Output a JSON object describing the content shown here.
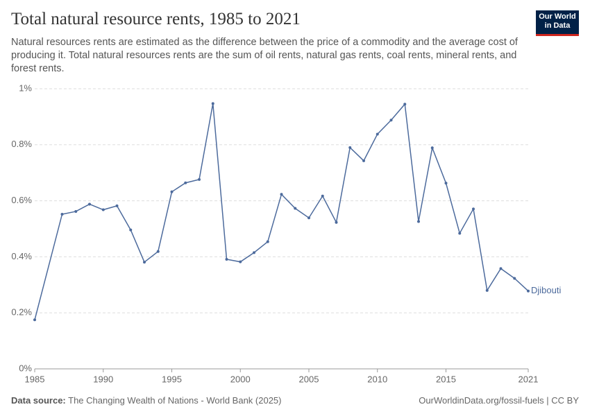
{
  "chart_data": {
    "type": "line",
    "title": "Total natural resource rents, 1985 to 2021",
    "subtitle": "Natural resources rents are estimated as the difference between the price of a commodity and the average cost of producing it. Total natural resources rents are the sum of oil rents, natural gas rents, coal rents, mineral rents, and forest rents.",
    "logo": "Our World in Data",
    "source_label": "Data source:",
    "source": "The Changing Wealth of Nations - World Bank (2025)",
    "credit": "OurWorldinData.org/fossil-fuels | CC BY",
    "x": [
      1985,
      1987,
      1988,
      1989,
      1990,
      1991,
      1992,
      1993,
      1994,
      1995,
      1996,
      1997,
      1998,
      1999,
      2000,
      2001,
      2002,
      2003,
      2004,
      2005,
      2006,
      2007,
      2008,
      2009,
      2010,
      2011,
      2012,
      2013,
      2014,
      2015,
      2016,
      2017,
      2018,
      2019,
      2020,
      2021
    ],
    "series": [
      {
        "name": "Djibouti",
        "color": "#4c6a9c",
        "values": [
          0.175,
          0.552,
          0.562,
          0.588,
          0.568,
          0.582,
          0.496,
          0.381,
          0.419,
          0.632,
          0.664,
          0.676,
          0.947,
          0.391,
          0.382,
          0.415,
          0.454,
          0.623,
          0.573,
          0.539,
          0.617,
          0.523,
          0.79,
          0.743,
          0.838,
          0.888,
          0.945,
          0.526,
          0.789,
          0.663,
          0.484,
          0.571,
          0.28,
          0.358,
          0.323,
          0.278
        ]
      }
    ],
    "xlim": [
      1985,
      2021
    ],
    "xticks": [
      1985,
      1990,
      1995,
      2000,
      2005,
      2010,
      2015,
      2021
    ],
    "ylim": [
      0,
      1
    ],
    "yticks": [
      {
        "value": 0,
        "label": "0%"
      },
      {
        "value": 0.2,
        "label": "0.2%"
      },
      {
        "value": 0.4,
        "label": "0.4%"
      },
      {
        "value": 0.6,
        "label": "0.6%"
      },
      {
        "value": 0.8,
        "label": "0.8%"
      },
      {
        "value": 1,
        "label": "1%"
      }
    ],
    "grid": true
  }
}
